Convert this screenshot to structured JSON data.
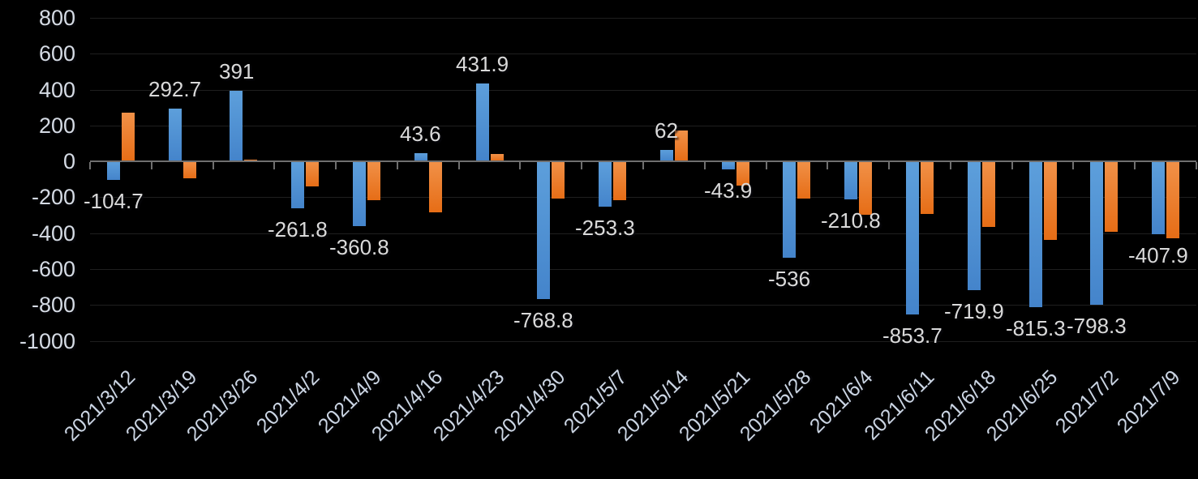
{
  "chart_data": {
    "type": "bar",
    "title": "",
    "legend": "none",
    "grid": true,
    "categories": [
      "2021/3/12",
      "2021/3/19",
      "2021/3/26",
      "2021/4/2",
      "2021/4/9",
      "2021/4/16",
      "2021/4/23",
      "2021/4/30",
      "2021/5/7",
      "2021/5/14",
      "2021/5/21",
      "2021/5/28",
      "2021/6/4",
      "2021/6/11",
      "2021/6/18",
      "2021/6/25",
      "2021/7/2",
      "2021/7/9"
    ],
    "series": [
      {
        "name": "blue-series",
        "color": "#4f94d4",
        "gradient": [
          "#5d9fdb",
          "#4484cb"
        ],
        "values": [
          -104.7,
          292.7,
          391,
          -261.8,
          -360.8,
          43.6,
          431.9,
          -768.8,
          -253.3,
          62,
          -43.9,
          -536,
          -210.8,
          -853.7,
          -719.9,
          -815.3,
          -798.3,
          -407.9
        ],
        "data_labels_visible": true
      },
      {
        "name": "orange-series",
        "color": "#ec7a28",
        "gradient": [
          "#f19148",
          "#e66d16"
        ],
        "values": [
          270,
          -95,
          10,
          -140,
          -215,
          -285,
          40,
          -210,
          -215,
          170,
          -135,
          -210,
          -300,
          -295,
          -365,
          -440,
          -395,
          -430
        ],
        "data_labels_visible": false
      }
    ],
    "data_labels": [
      "-104.7",
      "292.7",
      "391",
      "-261.8",
      "-360.8",
      "43.6",
      "431.9",
      "-768.8",
      "-253.3",
      "62",
      "-43.9",
      "-536",
      "-210.8",
      "-853.7",
      "-719.9",
      "-815.3",
      "-798.3",
      "-407.9"
    ],
    "y_axis": {
      "min": -1000,
      "max": 800,
      "step": 200,
      "tick_labels": [
        "800",
        "600",
        "400",
        "200",
        "0",
        "-200",
        "-400",
        "-600",
        "-800",
        "-1000"
      ]
    },
    "x_axis": {
      "label_rotation_deg": 45
    },
    "colors": {
      "background": "#000000",
      "grid_line": "#1f1f1f",
      "axis_line": "#6f6f6f",
      "axis_text": "#d5dbe4",
      "data_label_text": "#dadada",
      "series_blue": "#4f94d4",
      "series_orange": "#ec7a28"
    }
  }
}
